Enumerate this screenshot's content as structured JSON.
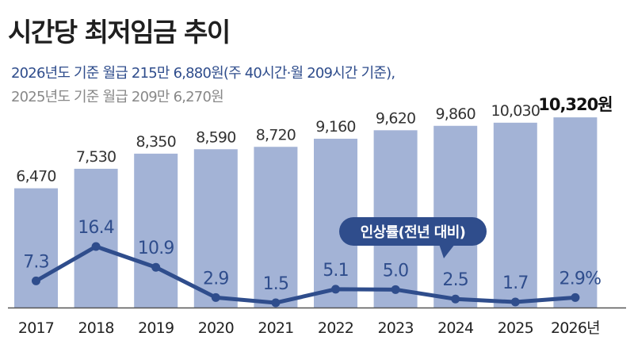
{
  "header": {
    "title": "시간당 최저임금 추이",
    "subtitle_2026": "2026년도 기준 월급 215만 6,880원(주 40시간·월 209시간 기준),",
    "subtitle_2025": "2025년도 기준 월급 209만 6,270원"
  },
  "colors": {
    "bar": "#a3b3d6",
    "line": "#2f4d8c",
    "bar_label": "#333333",
    "rate_label": "#2f4d8c",
    "baseline": "#555555"
  },
  "chart_data": {
    "type": "bar",
    "categories": [
      "2017",
      "2018",
      "2019",
      "2020",
      "2021",
      "2022",
      "2023",
      "2024",
      "2025",
      "2026년"
    ],
    "series": [
      {
        "type": "bar",
        "values": [
          6470,
          7530,
          8350,
          8590,
          8720,
          9160,
          9620,
          9860,
          10030,
          10320
        ]
      },
      {
        "type": "line",
        "values": [
          7.3,
          16.4,
          10.9,
          2.9,
          1.5,
          5.1,
          5.0,
          2.5,
          1.7,
          2.9
        ]
      }
    ],
    "bar_labels": [
      "6,470",
      "7,530",
      "8,350",
      "8,590",
      "8,720",
      "9,160",
      "9,620",
      "9,860",
      "10,030",
      "10,320"
    ],
    "last_bar_unit": "원",
    "rate_labels": [
      "7.3",
      "16.4",
      "10.9",
      "2.9",
      "1.5",
      "5.1",
      "5.0",
      "2.5",
      "1.7",
      "2.9"
    ],
    "last_rate_unit": "%",
    "callout": "인상률(전년 대비)",
    "grid": false,
    "legend": "none"
  }
}
